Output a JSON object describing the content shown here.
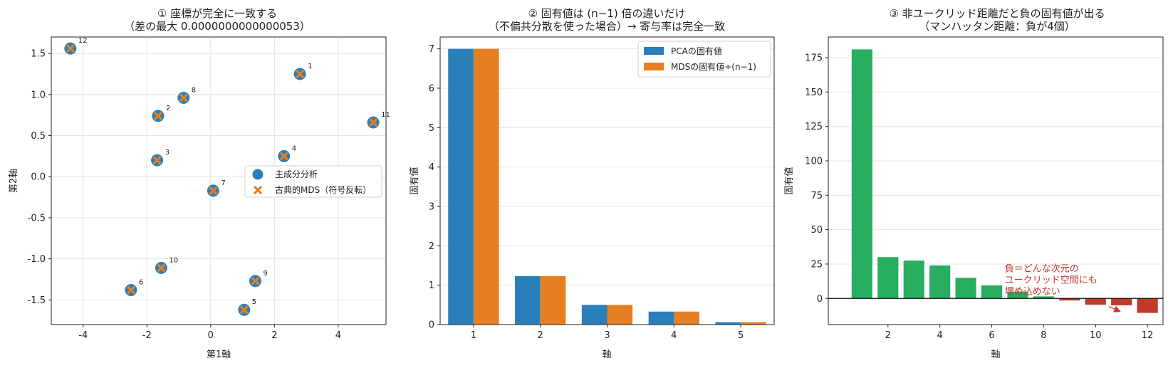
{
  "colors": {
    "pca": "#2a7fba",
    "mds": "#e67e22",
    "positive": "#27ae60",
    "negative": "#c0392b"
  },
  "chart_data": [
    {
      "type": "scatter",
      "title_lines": [
        "① 座標が完全に一致する",
        "（差の最大 0.0000000000000053）"
      ],
      "xlabel": "第1軸",
      "ylabel": "第2軸",
      "xlim": [
        -5.0,
        5.5
      ],
      "ylim": [
        -1.8,
        1.7
      ],
      "xticks": [
        -4,
        -2,
        0,
        2,
        4
      ],
      "yticks": [
        -1.5,
        -1.0,
        -0.5,
        0.0,
        0.5,
        1.0,
        1.5
      ],
      "grid": true,
      "legend_position": "center-right",
      "series": [
        {
          "name": "主成分分析",
          "marker": "circle"
        },
        {
          "name": "古典的MDS（符号反転）",
          "marker": "x"
        }
      ],
      "points": [
        {
          "label": "1",
          "x": 2.8,
          "y": 1.25
        },
        {
          "label": "2",
          "x": -1.65,
          "y": 0.74
        },
        {
          "label": "3",
          "x": -1.68,
          "y": 0.2
        },
        {
          "label": "4",
          "x": 2.3,
          "y": 0.25
        },
        {
          "label": "5",
          "x": 1.05,
          "y": -1.62
        },
        {
          "label": "6",
          "x": -2.5,
          "y": -1.38
        },
        {
          "label": "7",
          "x": 0.08,
          "y": -0.17
        },
        {
          "label": "8",
          "x": -0.85,
          "y": 0.96
        },
        {
          "label": "9",
          "x": 1.4,
          "y": -1.27
        },
        {
          "label": "10",
          "x": -1.55,
          "y": -1.11
        },
        {
          "label": "11",
          "x": 5.1,
          "y": 0.66
        },
        {
          "label": "12",
          "x": -4.4,
          "y": 1.56
        }
      ]
    },
    {
      "type": "bar",
      "title_lines": [
        "② 固有値は (n−1) 倍の違いだけ",
        "（不偏共分散を使った場合）→ 寄与率は完全一致"
      ],
      "xlabel": "軸",
      "ylabel": "固有値",
      "ylim": [
        0,
        7.3
      ],
      "yticks": [
        0,
        1,
        2,
        3,
        4,
        5,
        6,
        7
      ],
      "grid": true,
      "legend_position": "top-right",
      "categories": [
        "1",
        "2",
        "3",
        "4",
        "5"
      ],
      "series": [
        {
          "name": "PCAの固有値",
          "values": [
            7.0,
            1.23,
            0.5,
            0.33,
            0.06
          ]
        },
        {
          "name": "MDSの固有値÷(n−1)",
          "values": [
            7.0,
            1.23,
            0.5,
            0.33,
            0.06
          ]
        }
      ]
    },
    {
      "type": "bar",
      "title_lines": [
        "③ 非ユークリッド距離だと負の固有値が出る",
        "（マンハッタン距離：負が4個）"
      ],
      "xlabel": "軸",
      "ylabel": "固有値",
      "ylim": [
        -19,
        190
      ],
      "xlim": [
        -0.3,
        12.6
      ],
      "xticks": [
        2,
        4,
        6,
        8,
        10,
        12
      ],
      "yticks": [
        0,
        25,
        50,
        75,
        100,
        125,
        150,
        175
      ],
      "grid": true,
      "categories": [
        1,
        2,
        3,
        4,
        5,
        6,
        7,
        8,
        9,
        10,
        11,
        12
      ],
      "values": [
        181,
        30,
        27.5,
        24,
        15,
        9.5,
        5,
        1.5,
        -1.5,
        -4.5,
        -5,
        -10.5
      ],
      "annotation": {
        "lines": [
          "負＝どんな次元の",
          "ユークリッド空間にも",
          "埋め込めない"
        ],
        "x": 6.5,
        "y": 6,
        "arrow_to": [
          11,
          -10
        ]
      }
    }
  ]
}
